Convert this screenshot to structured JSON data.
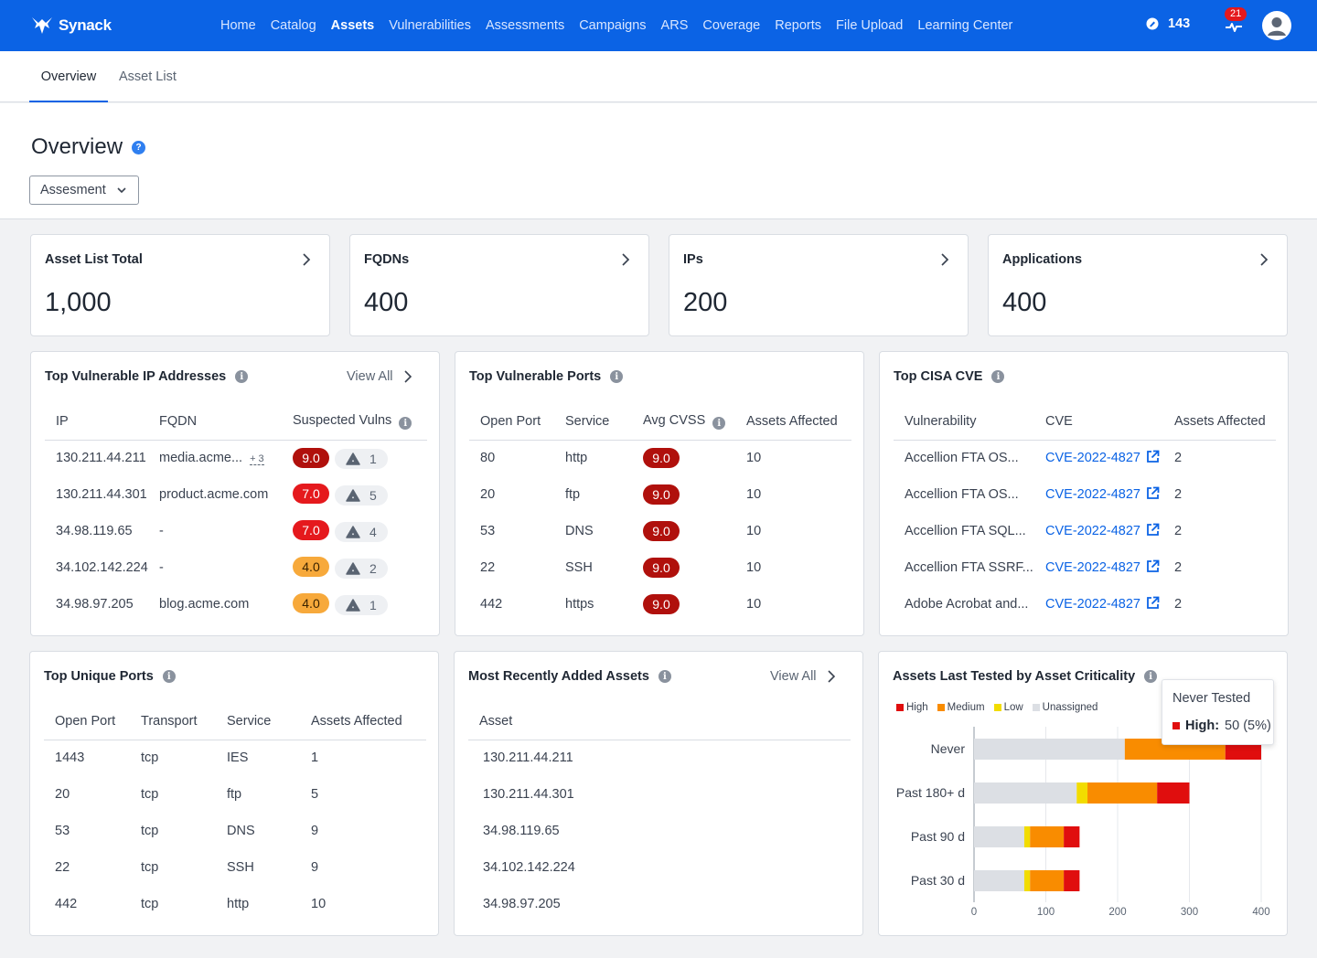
{
  "nav": {
    "logo_text": "Synack",
    "links": [
      "Home",
      "Catalog",
      "Assets",
      "Vulnerabilities",
      "Assessments",
      "Campaigns",
      "ARS",
      "Coverage",
      "Reports",
      "File Upload",
      "Learning Center"
    ],
    "active": "Assets",
    "points": "143",
    "notifications": "21"
  },
  "subnav": {
    "tabs": [
      "Overview",
      "Asset List"
    ]
  },
  "header": {
    "title": "Overview",
    "help": "?",
    "dropdown": "Assesment"
  },
  "stats": [
    {
      "label": "Asset List Total",
      "value": "1,000"
    },
    {
      "label": "FQDNs",
      "value": "400"
    },
    {
      "label": "IPs",
      "value": "200"
    },
    {
      "label": "Applications",
      "value": "400"
    }
  ],
  "info_glyph": "i",
  "top_ips": {
    "title": "Top Vulnerable IP Addresses",
    "view_all": "View All",
    "headers": [
      "IP",
      "FQDN",
      "Suspected Vulns"
    ],
    "rows": [
      {
        "ip": "130.211.44.211",
        "fqdn": "media.acme...",
        "more": "+ 3",
        "score": "9.0",
        "level": "crit",
        "count": "1"
      },
      {
        "ip": "130.211.44.301",
        "fqdn": "product.acme.com",
        "more": "",
        "score": "7.0",
        "level": "high",
        "count": "5"
      },
      {
        "ip": "34.98.119.65",
        "fqdn": "-",
        "more": "",
        "score": "7.0",
        "level": "high",
        "count": "4"
      },
      {
        "ip": "34.102.142.224",
        "fqdn": "-",
        "more": "",
        "score": "4.0",
        "level": "med",
        "count": "2"
      },
      {
        "ip": "34.98.97.205",
        "fqdn": "blog.acme.com",
        "more": "",
        "score": "4.0",
        "level": "med",
        "count": "1"
      }
    ]
  },
  "top_ports": {
    "title": "Top Vulnerable Ports",
    "headers": [
      "Open Port",
      "Service",
      "Avg CVSS",
      "Assets Affected"
    ],
    "rows": [
      {
        "port": "80",
        "service": "http",
        "cvss": "9.0",
        "affected": "10"
      },
      {
        "port": "20",
        "service": "ftp",
        "cvss": "9.0",
        "affected": "10"
      },
      {
        "port": "53",
        "service": "DNS",
        "cvss": "9.0",
        "affected": "10"
      },
      {
        "port": "22",
        "service": "SSH",
        "cvss": "9.0",
        "affected": "10"
      },
      {
        "port": "442",
        "service": "https",
        "cvss": "9.0",
        "affected": "10"
      }
    ]
  },
  "top_cve": {
    "title": "Top CISA CVE",
    "headers": [
      "Vulnerability",
      "CVE",
      "Assets Affected"
    ],
    "rows": [
      {
        "vuln": "Accellion FTA OS...",
        "cve": "CVE-2022-4827",
        "affected": "2"
      },
      {
        "vuln": "Accellion FTA OS...",
        "cve": "CVE-2022-4827",
        "affected": "2"
      },
      {
        "vuln": "Accellion FTA SQL...",
        "cve": "CVE-2022-4827",
        "affected": "2"
      },
      {
        "vuln": "Accellion FTA SSRF...",
        "cve": "CVE-2022-4827",
        "affected": "2"
      },
      {
        "vuln": "Adobe Acrobat and...",
        "cve": "CVE-2022-4827",
        "affected": "2"
      }
    ]
  },
  "unique_ports": {
    "title": "Top Unique Ports",
    "headers": [
      "Open Port",
      "Transport",
      "Service",
      "Assets Affected"
    ],
    "rows": [
      {
        "port": "1443",
        "transport": "tcp",
        "service": "IES",
        "affected": "1"
      },
      {
        "port": "20",
        "transport": "tcp",
        "service": "ftp",
        "affected": "5"
      },
      {
        "port": "53",
        "transport": "tcp",
        "service": "DNS",
        "affected": "9"
      },
      {
        "port": "22",
        "transport": "tcp",
        "service": "SSH",
        "affected": "9"
      },
      {
        "port": "442",
        "transport": "tcp",
        "service": "http",
        "affected": "10"
      }
    ]
  },
  "recent_assets": {
    "title": "Most Recently Added Assets",
    "view_all": "View All",
    "headers": [
      "Asset"
    ],
    "rows": [
      "130.211.44.211",
      "130.211.44.301",
      "34.98.119.65",
      "34.102.142.224",
      "34.98.97.205"
    ]
  },
  "criticality": {
    "title": "Assets Last Tested by Asset Criticality",
    "tooltip": {
      "title": "Never Tested",
      "label": "High:",
      "value": "50 (5%)"
    }
  },
  "colors": {
    "unassigned": "#dcdfe4",
    "low": "#f2dc00",
    "medium": "#f98c00",
    "high": "#e00e0e"
  },
  "chart_data": {
    "type": "bar",
    "orientation": "horizontal",
    "stacked": true,
    "categories": [
      "Never",
      "Past 180+ d",
      "Past 90 d",
      "Past 30 d"
    ],
    "series": [
      {
        "name": "Unassigned",
        "values": [
          210,
          143,
          70,
          70
        ]
      },
      {
        "name": "Low",
        "values": [
          0,
          15,
          8,
          8
        ]
      },
      {
        "name": "Medium",
        "values": [
          140,
          97,
          47,
          47
        ]
      },
      {
        "name": "High",
        "values": [
          50,
          45,
          22,
          22
        ]
      }
    ],
    "legend_order": [
      "High",
      "Medium",
      "Low",
      "Unassigned"
    ],
    "xlim": [
      0,
      400
    ],
    "xticks": [
      "0",
      "100",
      "200",
      "300",
      "400"
    ],
    "grid": true,
    "legend": "top-left"
  }
}
